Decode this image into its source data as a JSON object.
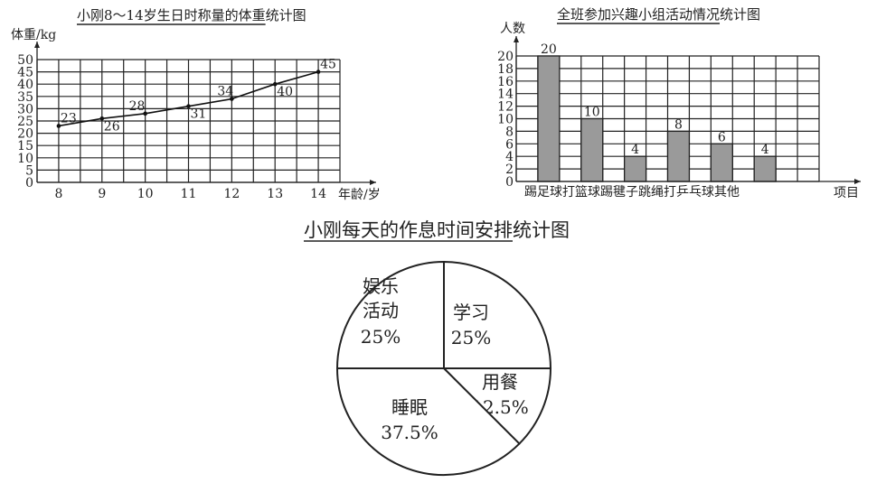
{
  "chart_data": [
    {
      "type": "line",
      "title": "小刚8～14岁生日时称量的体重统计图",
      "title_underlined_part": "小刚8～14岁生日时称量的体重",
      "title_rest": "统计图",
      "xlabel": "年龄/岁",
      "ylabel": "体重/kg",
      "x": [
        8,
        9,
        10,
        11,
        12,
        13,
        14
      ],
      "y": [
        23,
        26,
        28,
        31,
        34,
        40,
        45
      ],
      "data_labels": [
        "23",
        "26",
        "28",
        "31",
        "34",
        "40",
        "45"
      ],
      "ylim": [
        0,
        50
      ],
      "yticks": [
        0,
        5,
        10,
        15,
        20,
        25,
        30,
        35,
        40,
        45,
        50
      ],
      "grid": true,
      "color": "#111111"
    },
    {
      "type": "bar",
      "title": "全班参加兴趣小组活动情况统计图",
      "title_underlined_part": "全班参加兴趣小组活动情况",
      "title_rest": "统计图",
      "xlabel": "项目",
      "ylabel": "人数",
      "categories": [
        "踢足球",
        "打篮球",
        "踢毽子",
        "跳绳",
        "打乒乓球",
        "其他"
      ],
      "values": [
        20,
        10,
        4,
        8,
        6,
        4
      ],
      "data_labels": [
        "20",
        "10",
        "4",
        "8",
        "6",
        "4"
      ],
      "ylim": [
        0,
        20
      ],
      "yticks": [
        0,
        2,
        4,
        6,
        8,
        10,
        12,
        14,
        16,
        18,
        20
      ],
      "grid": true,
      "bar_color": "#9a9a9a"
    },
    {
      "type": "pie",
      "title": "小刚每天的作息时间安排统计图",
      "title_underlined_part": "小刚每天的作息时间安排",
      "title_rest": "统计图",
      "slices": [
        {
          "label": "学习",
          "value": 25,
          "text": "25%"
        },
        {
          "label": "用餐",
          "value": 12.5,
          "text": "12.5%"
        },
        {
          "label": "睡眠",
          "value": 37.5,
          "text": "37.5%"
        },
        {
          "label": "娱乐活动",
          "label_lines": [
            "娱乐",
            "活动"
          ],
          "value": 25,
          "text": "25%"
        }
      ],
      "fill": "#ffffff"
    }
  ]
}
